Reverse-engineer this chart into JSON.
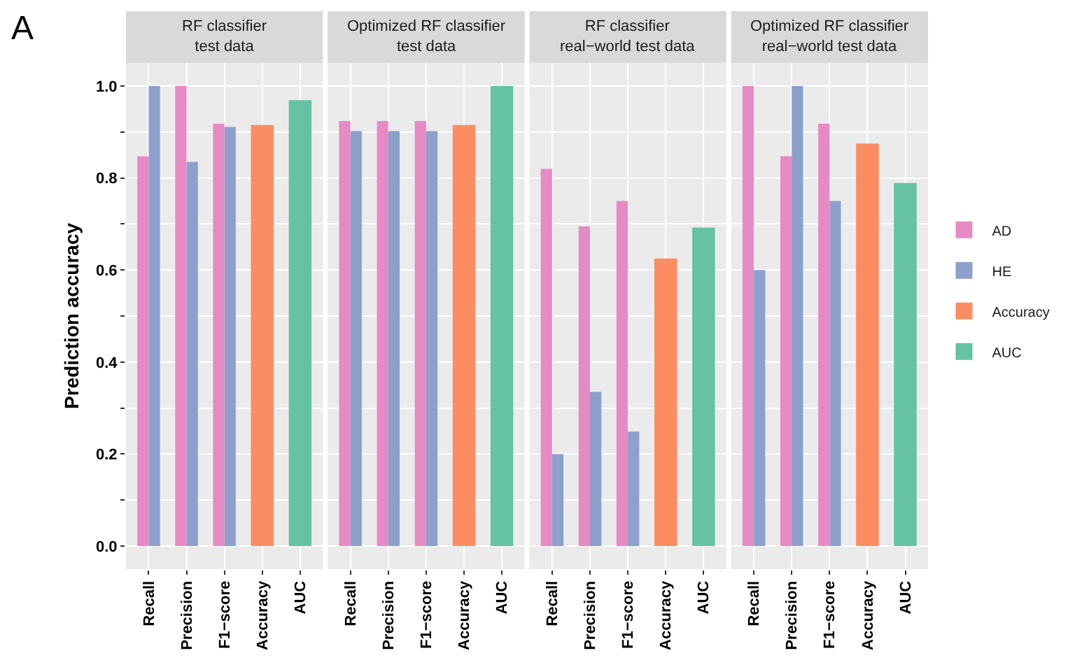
{
  "chart_data": [
    {
      "type": "bar",
      "title": "RF classifier\ntest data",
      "ylabel": "Prediction accuracy",
      "annotations": [
        "A"
      ],
      "categories": [
        "Recall",
        "Precision",
        "F1−score",
        "Accuracy",
        "AUC"
      ],
      "ylim": [
        -0.05,
        1.05
      ],
      "yticks": [
        {
          "value": 0.0,
          "label": "0.0"
        },
        {
          "value": 0.1,
          "label": null
        },
        {
          "value": 0.2,
          "label": "0.2"
        },
        {
          "value": 0.3,
          "label": null
        },
        {
          "value": 0.4,
          "label": "0.4"
        },
        {
          "value": 0.5,
          "label": null
        },
        {
          "value": 0.6,
          "label": "0.6"
        },
        {
          "value": 0.7,
          "label": null
        },
        {
          "value": 0.8,
          "label": "0.8"
        },
        {
          "value": 0.9,
          "label": null
        },
        {
          "value": 1.0,
          "label": "1.0"
        }
      ],
      "grid": true,
      "legend": "right",
      "series": [
        {
          "name": "AD",
          "color": "#e78ac3",
          "values": [
            0.847,
            1.0,
            0.918,
            null,
            null
          ]
        },
        {
          "name": "HE",
          "color": "#8da0cb",
          "values": [
            1.0,
            0.835,
            0.911,
            null,
            null
          ]
        },
        {
          "name": "Accuracy",
          "color": "#fc8d62",
          "values": [
            null,
            null,
            null,
            0.915,
            null
          ]
        },
        {
          "name": "AUC",
          "color": "#66c2a5",
          "values": [
            null,
            null,
            null,
            null,
            0.969
          ]
        }
      ]
    },
    {
      "type": "bar",
      "title": "Optimized RF classifier\ntest data",
      "categories": [
        "Recall",
        "Precision",
        "F1−score",
        "Accuracy",
        "AUC"
      ],
      "ylim": [
        -0.05,
        1.05
      ],
      "yticks": [
        0.0,
        0.1,
        0.2,
        0.3,
        0.4,
        0.5,
        0.6,
        0.7,
        0.8,
        0.9,
        1.0
      ],
      "grid": true,
      "tick_labels": "x",
      "series": [
        {
          "color": "#e78ac3",
          "values": [
            0.924,
            0.924,
            0.924,
            null,
            null
          ]
        },
        {
          "color": "#8da0cb",
          "values": [
            0.902,
            0.902,
            0.902,
            null,
            null
          ]
        },
        {
          "color": "#fc8d62",
          "values": [
            null,
            null,
            null,
            0.915,
            null
          ]
        },
        {
          "color": "#66c2a5",
          "values": [
            null,
            null,
            null,
            null,
            1.0
          ]
        }
      ]
    },
    {
      "type": "bar",
      "title": "RF classifier\nreal−world test data",
      "categories": [
        "Recall",
        "Precision",
        "F1−score",
        "Accuracy",
        "AUC"
      ],
      "ylim": [
        -0.05,
        1.05
      ],
      "yticks": [
        0.0,
        0.1,
        0.2,
        0.3,
        0.4,
        0.5,
        0.6,
        0.7,
        0.8,
        0.9,
        1.0
      ],
      "grid": true,
      "tick_labels": "x",
      "series": [
        {
          "color": "#e78ac3",
          "values": [
            0.82,
            0.695,
            0.75,
            null,
            null
          ]
        },
        {
          "color": "#8da0cb",
          "values": [
            0.2,
            0.335,
            0.249,
            null,
            null
          ]
        },
        {
          "color": "#fc8d62",
          "values": [
            null,
            null,
            null,
            0.625,
            null
          ]
        },
        {
          "color": "#66c2a5",
          "values": [
            null,
            null,
            null,
            null,
            0.692
          ]
        }
      ]
    },
    {
      "type": "bar",
      "title": "Optimized RF classifier\nreal−world test data",
      "categories": [
        "Recall",
        "Precision",
        "F1−score",
        "Accuracy",
        "AUC"
      ],
      "ylim": [
        -0.05,
        1.05
      ],
      "yticks": [
        0.0,
        0.1,
        0.2,
        0.3,
        0.4,
        0.5,
        0.6,
        0.7,
        0.8,
        0.9,
        1.0
      ],
      "grid": true,
      "tick_labels": "x",
      "series": [
        {
          "color": "#e78ac3",
          "values": [
            1.0,
            0.847,
            0.918,
            null,
            null
          ]
        },
        {
          "color": "#8da0cb",
          "values": [
            0.6,
            1.0,
            0.75,
            null,
            null
          ]
        },
        {
          "color": "#fc8d62",
          "values": [
            null,
            null,
            null,
            0.875,
            null
          ]
        },
        {
          "color": "#66c2a5",
          "values": [
            null,
            null,
            null,
            null,
            0.789
          ]
        }
      ]
    }
  ]
}
